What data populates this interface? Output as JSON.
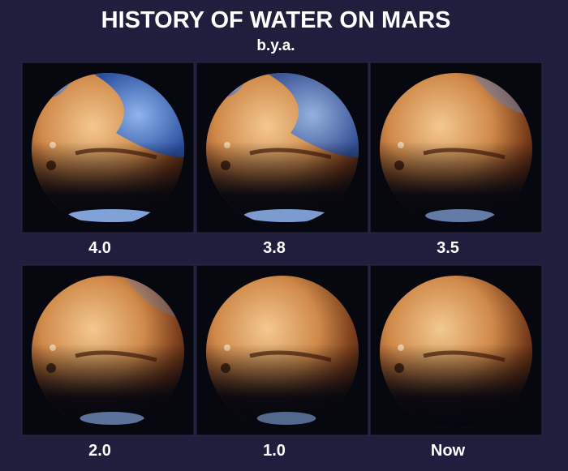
{
  "title": "HISTORY OF WATER ON MARS",
  "subtitle": "b.y.a.",
  "panels": [
    {
      "label": "4.0"
    },
    {
      "label": "3.8"
    },
    {
      "label": "3.5"
    },
    {
      "label": "2.0"
    },
    {
      "label": "1.0"
    },
    {
      "label": "Now"
    }
  ]
}
